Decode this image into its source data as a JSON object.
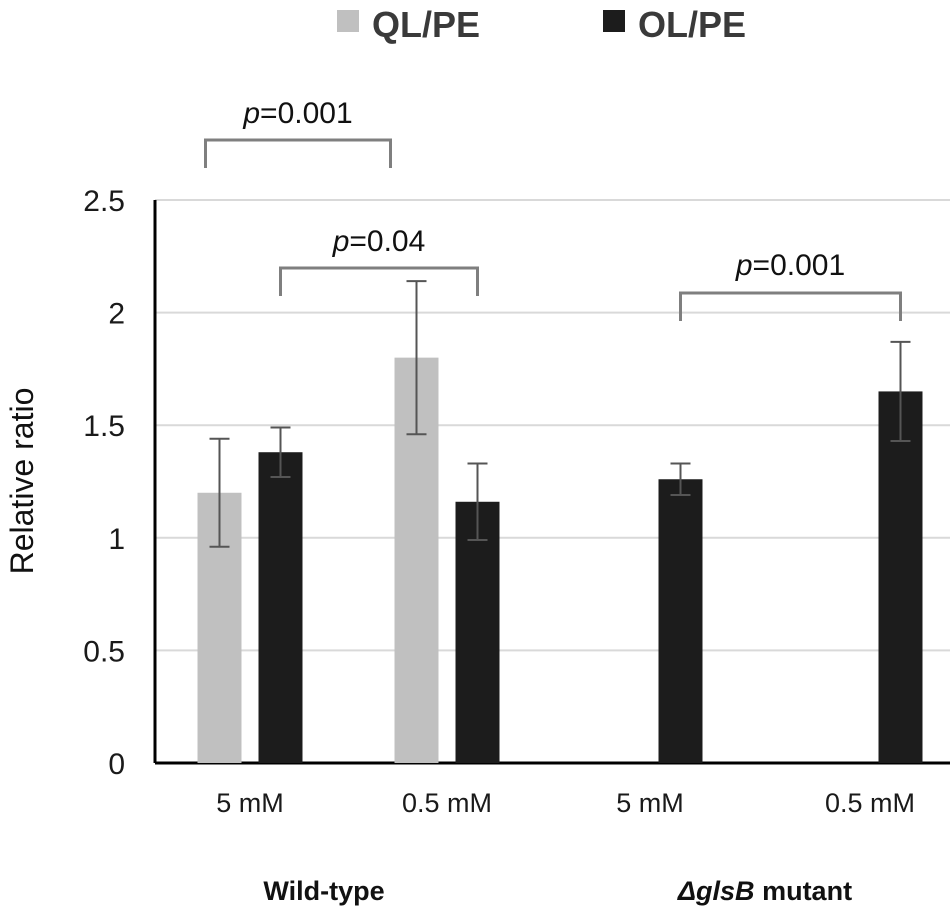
{
  "chart_data": {
    "type": "bar",
    "title": "",
    "ylabel": "Relative ratio",
    "xlabel": "",
    "ylim": [
      0,
      2.5
    ],
    "yticks": [
      "0",
      "0.5",
      "1",
      "1.5",
      "2",
      "2.5"
    ],
    "grid": true,
    "legend_position": "top",
    "categories": [
      "5 mM",
      "0.5 mM",
      "5 mM",
      "0.5 mM"
    ],
    "groups": [
      {
        "label": "Wild-type",
        "italic_prefix": "",
        "suffix": ""
      },
      {
        "label": "ΔglsB mutant",
        "italic_prefix": "ΔglsB",
        "suffix": " mutant"
      }
    ],
    "series": [
      {
        "name": "QL/PE",
        "color": "#c0c0c0",
        "values": [
          1.2,
          1.8,
          null,
          null
        ],
        "errors": [
          0.24,
          0.34,
          null,
          null
        ]
      },
      {
        "name": "OL/PE",
        "color": "#1c1c1c",
        "values": [
          1.38,
          1.16,
          1.26,
          1.65
        ],
        "errors": [
          0.11,
          0.17,
          0.07,
          0.22
        ]
      }
    ],
    "annotations": [
      {
        "text_italic": "p",
        "text": "=0.001",
        "from_bar": [
          0,
          0
        ],
        "to_bar": [
          0,
          1
        ]
      },
      {
        "text_italic": "p",
        "text": "=0.04",
        "from_bar": [
          1,
          0
        ],
        "to_bar": [
          1,
          1
        ]
      },
      {
        "text_italic": "p",
        "text": "=0.001",
        "from_bar": [
          1,
          2
        ],
        "to_bar": [
          1,
          3
        ]
      }
    ]
  }
}
